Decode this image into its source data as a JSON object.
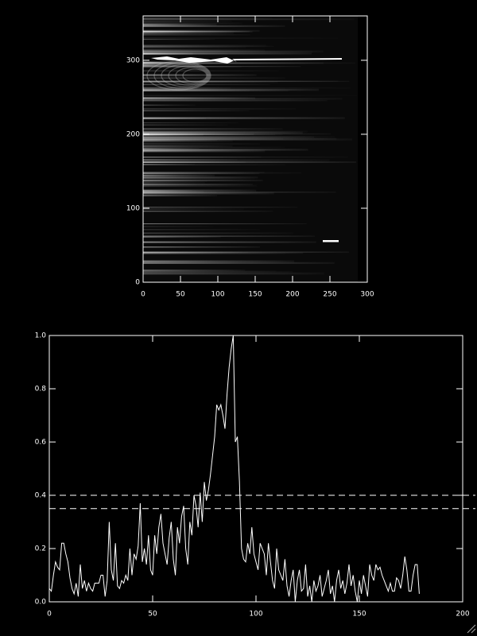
{
  "chart_data": [
    {
      "type": "image",
      "xlim": [
        0,
        300
      ],
      "ylim": [
        0,
        360
      ],
      "xticks": [
        0,
        50,
        100,
        150,
        200,
        250,
        300
      ],
      "yticks": [
        0,
        100,
        200,
        300
      ],
      "color": "#ffffff"
    },
    {
      "type": "line",
      "xlim": [
        0,
        200
      ],
      "ylim": [
        0,
        1.0
      ],
      "xticks": [
        0,
        50,
        100,
        150,
        200
      ],
      "yticks": [
        {
          "value": 0,
          "label": "0.0"
        },
        {
          "value": 0.2,
          "label": "0.2"
        },
        {
          "value": 0.4,
          "label": "0.4"
        },
        {
          "value": 0.6,
          "label": "0.6"
        },
        {
          "value": 0.8,
          "label": "0.8"
        },
        {
          "value": 1.0,
          "label": "1.0"
        }
      ],
      "hlines": [
        0.4,
        0.35
      ],
      "hline_style": "dashed",
      "color": "#ffffff",
      "x": [
        0,
        1,
        2,
        3,
        4,
        5,
        6,
        7,
        8,
        9,
        10,
        11,
        12,
        13,
        14,
        15,
        16,
        17,
        18,
        19,
        20,
        21,
        22,
        23,
        24,
        25,
        26,
        27,
        28,
        29,
        30,
        31,
        32,
        33,
        34,
        35,
        36,
        37,
        38,
        39,
        40,
        41,
        42,
        43,
        44,
        45,
        46,
        47,
        48,
        49,
        50,
        51,
        52,
        53,
        54,
        55,
        56,
        57,
        58,
        59,
        60,
        61,
        62,
        63,
        64,
        65,
        66,
        67,
        68,
        69,
        70,
        71,
        72,
        73,
        74,
        75,
        76,
        77,
        78,
        79,
        80,
        81,
        82,
        83,
        84,
        85,
        86,
        87,
        88,
        89,
        90,
        91,
        92,
        93,
        94,
        95,
        96,
        97,
        98,
        99,
        100,
        101,
        102,
        103,
        104,
        105,
        106,
        107,
        108,
        109,
        110,
        111,
        112,
        113,
        114,
        115,
        116,
        117,
        118,
        119,
        120,
        121,
        122,
        123,
        124,
        125,
        126,
        127,
        128,
        129,
        130,
        131,
        132,
        133,
        134,
        135,
        136,
        137,
        138,
        139,
        140,
        141,
        142,
        143,
        144,
        145,
        146,
        147,
        148,
        149,
        150,
        151,
        152,
        153,
        154,
        155,
        156,
        157,
        158,
        159,
        160,
        161,
        162,
        163,
        164,
        165,
        166,
        167,
        168,
        169,
        170,
        171,
        172,
        173,
        174,
        175,
        176,
        177,
        178,
        179
      ],
      "values": [
        0.05,
        0.04,
        0.1,
        0.15,
        0.13,
        0.12,
        0.22,
        0.22,
        0.18,
        0.15,
        0.09,
        0.05,
        0.03,
        0.07,
        0.02,
        0.14,
        0.05,
        0.08,
        0.04,
        0.07,
        0.05,
        0.04,
        0.07,
        0.07,
        0.07,
        0.1,
        0.1,
        0.02,
        0.08,
        0.3,
        0.12,
        0.08,
        0.22,
        0.06,
        0.05,
        0.08,
        0.07,
        0.1,
        0.08,
        0.2,
        0.1,
        0.18,
        0.16,
        0.21,
        0.37,
        0.15,
        0.2,
        0.14,
        0.25,
        0.12,
        0.1,
        0.25,
        0.18,
        0.28,
        0.33,
        0.22,
        0.18,
        0.14,
        0.24,
        0.3,
        0.16,
        0.1,
        0.28,
        0.22,
        0.32,
        0.36,
        0.2,
        0.14,
        0.3,
        0.25,
        0.4,
        0.36,
        0.28,
        0.41,
        0.3,
        0.45,
        0.38,
        0.42,
        0.48,
        0.55,
        0.62,
        0.74,
        0.72,
        0.74,
        0.7,
        0.65,
        0.78,
        0.88,
        0.95,
        1.0,
        0.6,
        0.62,
        0.45,
        0.2,
        0.16,
        0.15,
        0.22,
        0.18,
        0.28,
        0.18,
        0.15,
        0.12,
        0.22,
        0.2,
        0.18,
        0.1,
        0.22,
        0.15,
        0.08,
        0.05,
        0.2,
        0.12,
        0.1,
        0.08,
        0.16,
        0.06,
        0.02,
        0.08,
        0.12,
        0.0,
        0.08,
        0.12,
        0.04,
        0.05,
        0.14,
        0.02,
        0.06,
        0.0,
        0.08,
        0.04,
        0.06,
        0.1,
        0.02,
        0.05,
        0.08,
        0.12,
        0.03,
        0.06,
        0.0,
        0.08,
        0.12,
        0.05,
        0.08,
        0.03,
        0.07,
        0.14,
        0.06,
        0.1,
        0.04,
        0.0,
        0.08,
        0.03,
        0.1,
        0.06,
        0.02,
        0.14,
        0.1,
        0.08,
        0.14,
        0.12,
        0.13,
        0.1,
        0.08,
        0.06,
        0.04,
        0.07,
        0.04,
        0.04,
        0.09,
        0.08,
        0.05,
        0.1,
        0.17,
        0.12,
        0.04,
        0.04,
        0.1,
        0.14,
        0.14,
        0.03
      ]
    }
  ]
}
